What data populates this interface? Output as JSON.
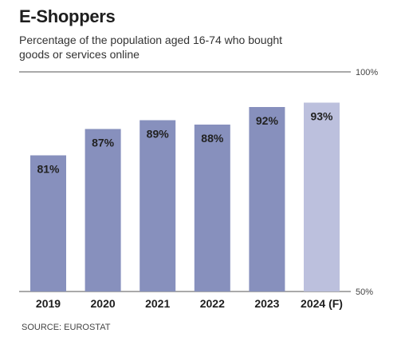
{
  "header": {
    "title": "E-Shoppers",
    "subtitle": "Percentage of the population aged 16-74 who bought goods or services online"
  },
  "footer": {
    "source": "SOURCE: EUROSTAT"
  },
  "colors": {
    "bar": "#8790bd",
    "bar_forecast": "#bcc0dd",
    "gridline": "#555555"
  },
  "chart_data": {
    "type": "bar",
    "title": "E-Shoppers",
    "subtitle": "Percentage of the population aged 16-74 who bought goods or services online",
    "categories": [
      "2019",
      "2020",
      "2021",
      "2022",
      "2023",
      "2024 (F)"
    ],
    "values": [
      81,
      87,
      89,
      88,
      92,
      93
    ],
    "data_labels": [
      "81%",
      "87%",
      "89%",
      "88%",
      "92%",
      "93%"
    ],
    "forecast": [
      false,
      false,
      false,
      false,
      false,
      true
    ],
    "ylim": [
      50,
      100
    ],
    "y_ticks": [
      {
        "value": 100,
        "label": "100%"
      },
      {
        "value": 50,
        "label": "50%"
      }
    ],
    "grid": false,
    "legend": "none",
    "xlabel": "",
    "ylabel": ""
  }
}
